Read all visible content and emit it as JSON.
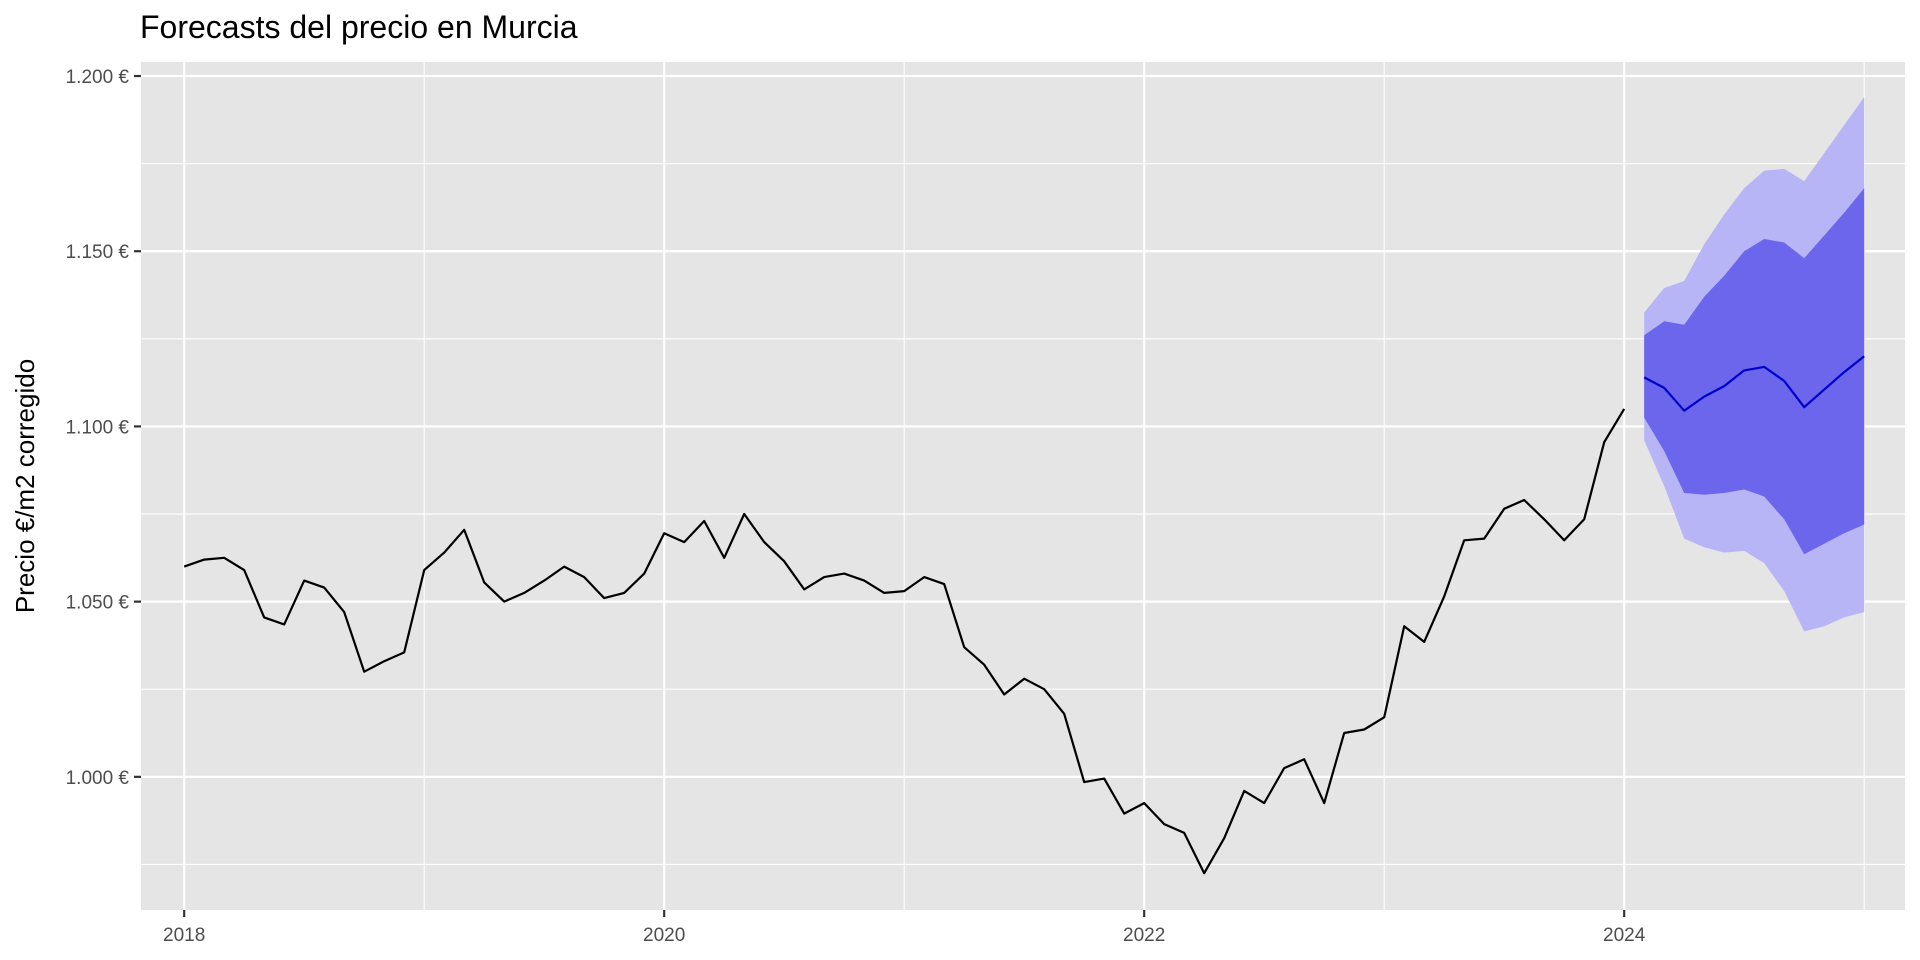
{
  "chart_data": {
    "type": "line",
    "title": "Forecasts del precio en Murcia",
    "xlabel": "",
    "ylabel": "Precio €/m2 corregido",
    "xlim": [
      2017.82,
      2025.17
    ],
    "ylim": [
      962.0,
      1204.0
    ],
    "x_ticks": [
      2018,
      2020,
      2022,
      2024
    ],
    "x_tick_labels": [
      "2018",
      "2020",
      "2022",
      "2024"
    ],
    "y_ticks": [
      1000,
      1050,
      1100,
      1150,
      1200
    ],
    "y_tick_labels": [
      "1.000 €",
      "1.050 €",
      "1.100 €",
      "1.150 €",
      "1.200 €"
    ],
    "grid": true,
    "colors": {
      "panel": "#e5e5e5",
      "grid": "#ffffff",
      "history_line": "#000000",
      "forecast_line": "#0000cc",
      "band_80": "#6b66ec",
      "band_95": "#b7b5f5"
    },
    "history": {
      "start": "2018-01",
      "values": [
        1060,
        1062,
        1062.5,
        1059,
        1045.5,
        1043.5,
        1056,
        1054,
        1047,
        1030,
        1033,
        1035.5,
        1059,
        1064,
        1070.5,
        1055.5,
        1050,
        1052.5,
        1056,
        1060,
        1057,
        1051,
        1052.5,
        1058,
        1069.5,
        1067,
        1073,
        1062.5,
        1075,
        1067,
        1061.5,
        1053.5,
        1057,
        1058,
        1056,
        1052.5,
        1053,
        1057,
        1055,
        1037,
        1032,
        1023.5,
        1028,
        1025,
        1018,
        998.5,
        999.5,
        989.5,
        992.5,
        986.5,
        984,
        972.5,
        982.5,
        996,
        992.5,
        1002.5,
        1005,
        992.5,
        1012.5,
        1013.5,
        1017,
        1043,
        1038.5,
        1051.5,
        1067.5,
        1068,
        1076.5,
        1079,
        1073.5,
        1067.5,
        1073.5,
        1095.5,
        1105
      ]
    },
    "forecast": {
      "start": "2024-02",
      "mean": [
        1114,
        1111,
        1104.5,
        1108.5,
        1111.5,
        1116,
        1117,
        1113,
        1105.5,
        1110.5,
        1115.5,
        1120
      ],
      "lo80": [
        1102.5,
        1093,
        1081,
        1080.5,
        1081,
        1082,
        1080,
        1073.5,
        1063.5,
        1066.5,
        1069.5,
        1072
      ],
      "hi80": [
        1126,
        1130,
        1129,
        1137,
        1143,
        1150,
        1153.5,
        1152.5,
        1148,
        1154.5,
        1161,
        1168
      ],
      "lo95": [
        1096,
        1083,
        1068,
        1065.5,
        1064,
        1064.5,
        1061,
        1053,
        1041.5,
        1043,
        1045.5,
        1047
      ],
      "hi95": [
        1132.5,
        1139.5,
        1141.5,
        1152,
        1160.5,
        1168,
        1173,
        1173.5,
        1170,
        1178,
        1186,
        1194
      ]
    }
  }
}
